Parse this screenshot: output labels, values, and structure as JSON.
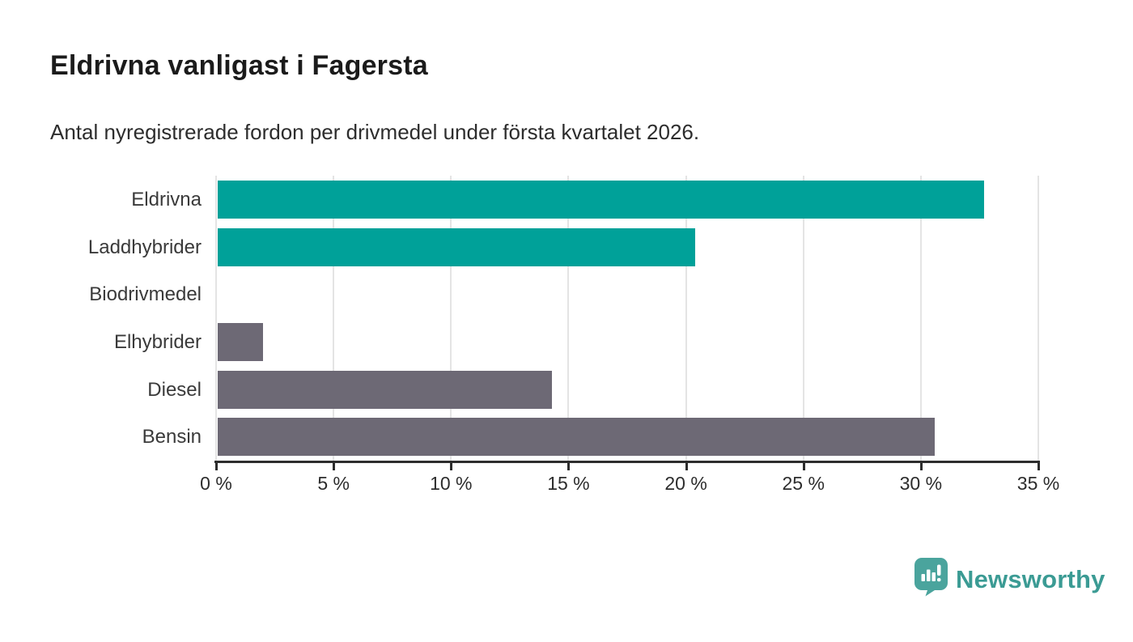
{
  "header": {
    "title": "Eldrivna vanligast i Fagersta",
    "subtitle": "Antal nyregistrerade fordon per drivmedel under första kvartalet 2026."
  },
  "chart_data": {
    "type": "bar",
    "orientation": "horizontal",
    "title": "Eldrivna vanligast i Fagersta",
    "subtitle": "Antal nyregistrerade fordon per drivmedel under första kvartalet 2026.",
    "categories": [
      "Eldrivna",
      "Laddhybrider",
      "Biodrivmedel",
      "Elhybrider",
      "Diesel",
      "Bensin"
    ],
    "values": [
      32.7,
      20.4,
      0,
      2.0,
      14.3,
      30.6
    ],
    "unit": "%",
    "xlim": [
      0,
      35
    ],
    "x_ticks": [
      0,
      5,
      10,
      15,
      20,
      25,
      30,
      35
    ],
    "x_tick_labels": [
      "0 %",
      "5 %",
      "10 %",
      "15 %",
      "20 %",
      "25 %",
      "30 %",
      "35 %"
    ],
    "bar_colors": [
      "#00a199",
      "#00a199",
      "#6d6975",
      "#6d6975",
      "#6d6975",
      "#6d6975"
    ],
    "grid": "vertical-only",
    "legend": false
  },
  "colors": {
    "accent_teal": "#00a199",
    "bar_gray": "#6d6975",
    "gridline": "#e4e4e4",
    "axis": "#2d2d2d",
    "title_text": "#1b1b1b",
    "body_text": "#2d2d2d",
    "brand_teal": "#3b9b94"
  },
  "footer": {
    "brand": "Newsworthy"
  }
}
